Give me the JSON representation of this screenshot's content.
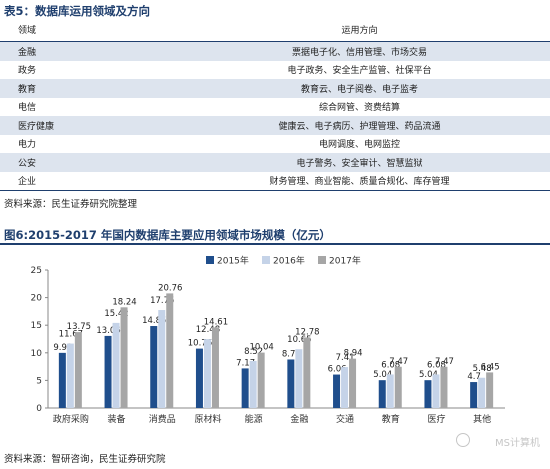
{
  "table_caption": "表5：数据库运用领域及方向",
  "table": {
    "headers": [
      "领域",
      "运用方向"
    ],
    "rows": [
      [
        "金融",
        "票据电子化、信用管理、市场交易"
      ],
      [
        "政务",
        "电子政务、安全生产监管、社保平台"
      ],
      [
        "教育",
        "教育云、电子阅卷、电子监考"
      ],
      [
        "电信",
        "综合网管、资费结算"
      ],
      [
        "医疗健康",
        "健康云、电子病历、护理管理、药品流通"
      ],
      [
        "电力",
        "电网调度、电网监控"
      ],
      [
        "公安",
        "电子警务、安全审计、智慧监狱"
      ],
      [
        "企业",
        "财务管理、商业智能、质量合规化、库存管理"
      ]
    ]
  },
  "table_source": "资料来源：民生证券研究院整理",
  "chart_caption": "图6:2015-2017 年国内数据库主要应用领域市场规模（亿元）",
  "chart_source": "资料来源：智研咨询，民生证券研究院",
  "watermark": "MS计算机",
  "colors": {
    "s2015": "#1f4e8c",
    "s2016": "#c5d3e8",
    "s2017": "#a6a6a6",
    "accent": "#1f3f6e"
  },
  "chart_data": {
    "type": "bar",
    "categories": [
      "政府采购",
      "装备",
      "消费品",
      "原材料",
      "能源",
      "金融",
      "交通",
      "教育",
      "医疗",
      "其他"
    ],
    "series": [
      {
        "name": "2015年",
        "values": [
          9.99,
          13.06,
          14.85,
          10.76,
          7.17,
          8.79,
          6.06,
          5.04,
          5.04,
          4.7
        ]
      },
      {
        "name": "2016年",
        "values": [
          11.67,
          15.42,
          17.75,
          12.48,
          8.52,
          10.65,
          7.41,
          6.08,
          6.08,
          5.48
        ]
      },
      {
        "name": "2017年",
        "values": [
          13.75,
          18.24,
          20.76,
          14.61,
          10.04,
          12.78,
          8.94,
          7.47,
          7.47,
          6.45
        ]
      }
    ],
    "value_labels": [
      [
        "9.99",
        "13.06",
        "14.85",
        "10.76",
        "7.17",
        "8.79",
        "6.06",
        "5.04",
        "5.04",
        "4.7"
      ],
      [
        "11.67",
        "15.42",
        "17.75",
        "12.48",
        "8.52",
        "10.65",
        "7.41",
        "6.08",
        "6.08",
        "5.48"
      ],
      [
        "13.75",
        "18.24",
        "20.76",
        "14.61",
        "10.04",
        "12.78",
        "8.94",
        "7.47",
        "7.47",
        "6.45"
      ]
    ],
    "ylim": [
      0,
      25
    ],
    "yticks": [
      "0",
      "5",
      "10",
      "15",
      "20",
      "25"
    ],
    "grid": false,
    "legend": "top-center"
  }
}
